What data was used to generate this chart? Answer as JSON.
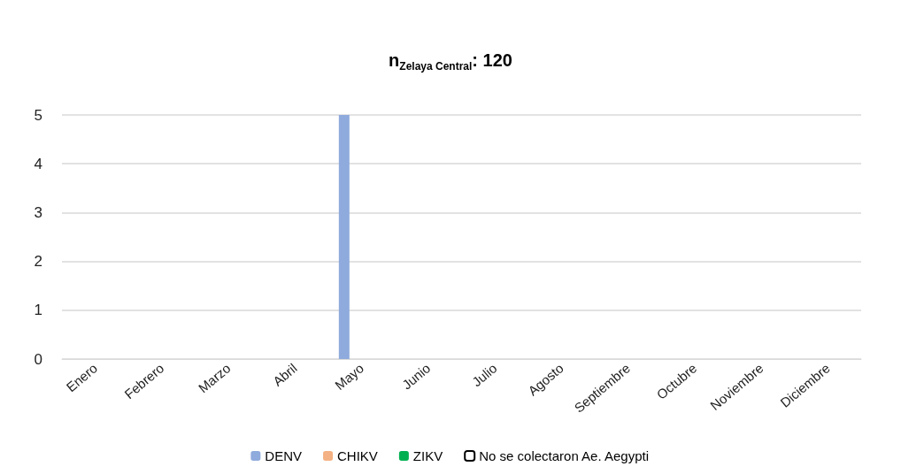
{
  "chart_data": {
    "type": "bar",
    "title": "n$_{Zelaya Central}$: 120",
    "categories": [
      "Enero",
      "Febrero",
      "Marzo",
      "Abril",
      "Mayo",
      "Junio",
      "Julio",
      "Agosto",
      "Septiembre",
      "Octubre",
      "Noviembre",
      "Diciembre"
    ],
    "series": [
      {
        "name": "DENV",
        "color": "#8faadc",
        "values": [
          0,
          0,
          0,
          0,
          5,
          0,
          0,
          null,
          0,
          0,
          0,
          0
        ]
      },
      {
        "name": "CHIKV",
        "color": "#f4b183",
        "values": [
          0,
          0,
          0,
          0,
          0,
          0,
          0,
          null,
          0,
          0,
          0,
          0
        ]
      },
      {
        "name": "ZIKV",
        "color": "#00b050",
        "values": [
          0,
          0,
          0,
          0,
          0,
          0,
          0,
          null,
          0,
          0,
          0,
          0
        ]
      },
      {
        "name": "No se colectaron Ae. Aegypti",
        "color": "#ffffff",
        "values": [
          null,
          null,
          null,
          null,
          null,
          null,
          null,
          null,
          null,
          null,
          null,
          null
        ]
      }
    ],
    "ylim": [
      0,
      5
    ],
    "yticks": [
      0,
      1,
      2,
      3,
      4,
      5
    ],
    "grid": "y",
    "legend": "bottom"
  }
}
